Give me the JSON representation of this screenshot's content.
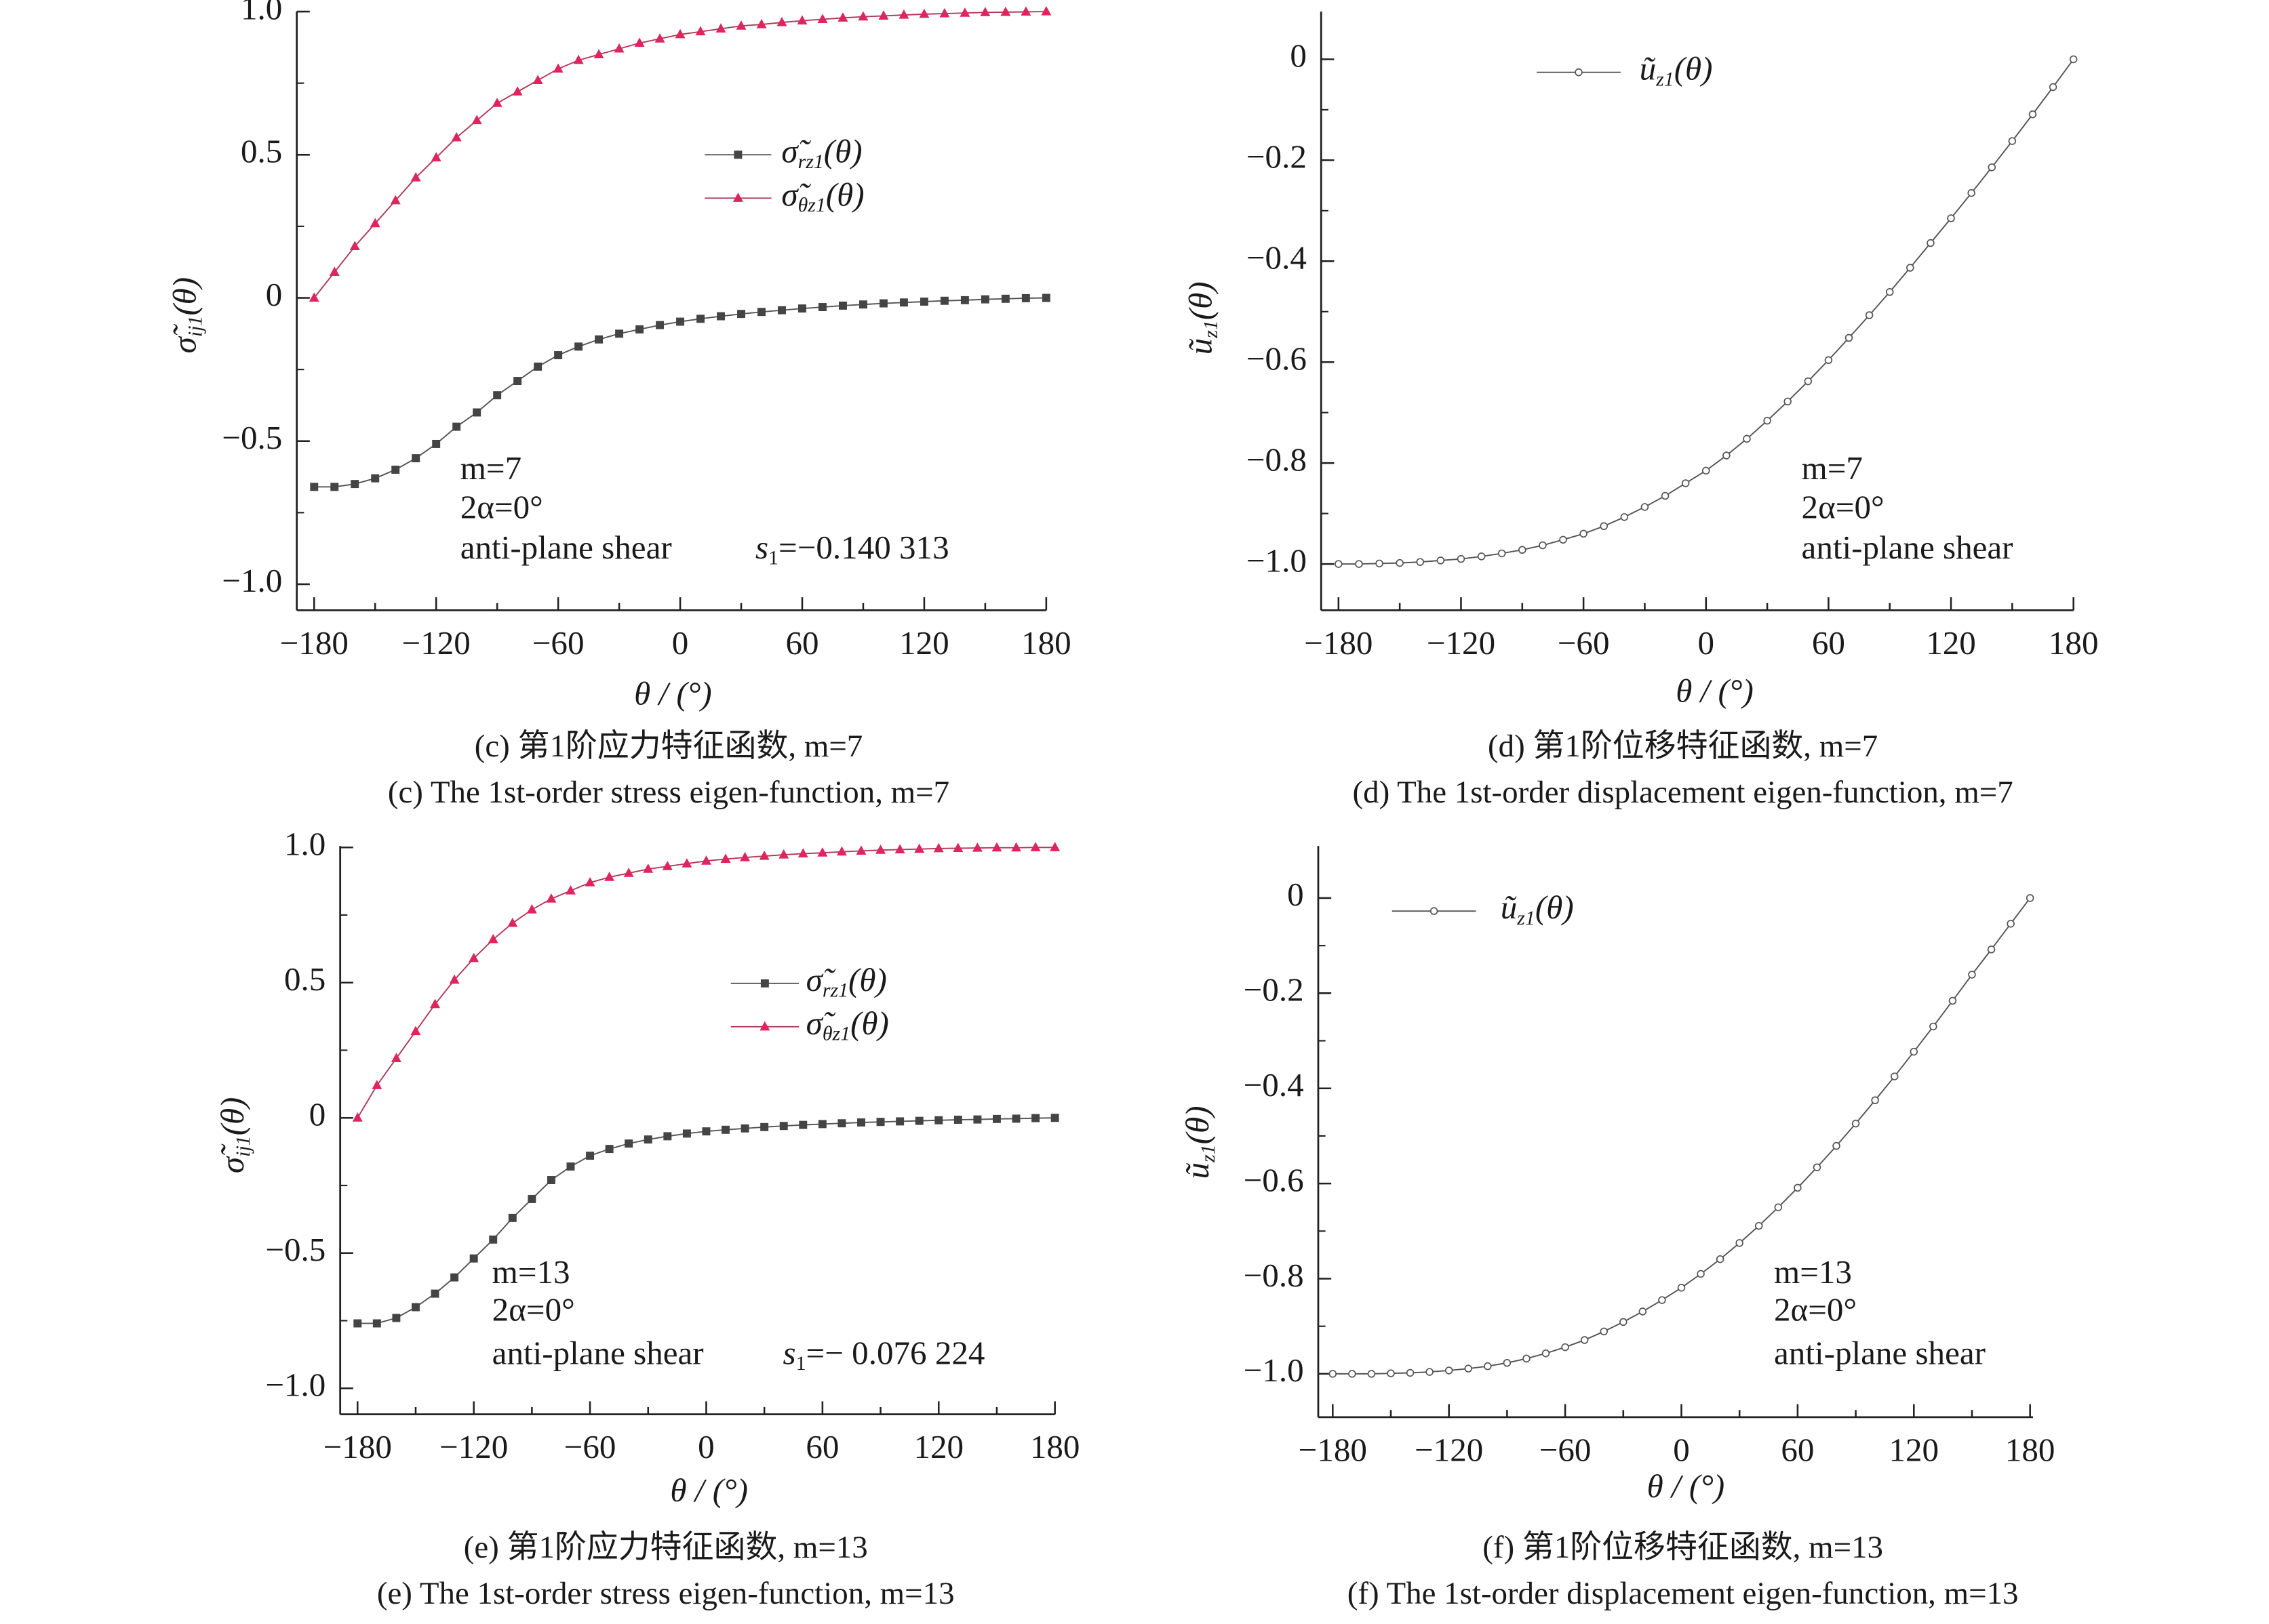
{
  "chart_data": [
    {
      "panel": "c",
      "type": "line",
      "x": [
        -180,
        -170,
        -160,
        -150,
        -140,
        -130,
        -120,
        -110,
        -100,
        -90,
        -80,
        -70,
        -60,
        -50,
        -40,
        -30,
        -20,
        -10,
        0,
        10,
        20,
        30,
        40,
        50,
        60,
        70,
        80,
        90,
        100,
        110,
        120,
        130,
        140,
        150,
        160,
        170,
        180
      ],
      "xlim": [
        -180,
        180
      ],
      "ylim": [
        -1.0,
        1.0
      ],
      "xticks": {
        "values": [
          -180,
          -120,
          -60,
          0,
          60,
          120,
          180
        ],
        "labels": [
          "−180",
          "−120",
          "−60",
          "0",
          "60",
          "120",
          "180"
        ]
      },
      "yticks": {
        "values": [
          1.0,
          0.5,
          0,
          -0.5,
          -1.0
        ],
        "labels": [
          "1.0",
          "0.5",
          "0",
          "−0.5",
          "−1.0"
        ]
      },
      "xlabel": "θ / (°)",
      "ylabel": {
        "base": "σ̃",
        "sub": "ij1",
        "tail": "(θ)"
      },
      "legend_position": "upper-center",
      "series": [
        {
          "name": {
            "base": "σ̃",
            "sub": "rz1",
            "tail": "(θ)"
          },
          "color": "#444444",
          "marker": "square",
          "values": [
            -0.66,
            -0.66,
            -0.65,
            -0.63,
            -0.6,
            -0.56,
            -0.51,
            -0.45,
            -0.4,
            -0.34,
            -0.29,
            -0.24,
            -0.2,
            -0.17,
            -0.145,
            -0.125,
            -0.11,
            -0.095,
            -0.083,
            -0.073,
            -0.064,
            -0.056,
            -0.049,
            -0.043,
            -0.037,
            -0.032,
            -0.027,
            -0.023,
            -0.019,
            -0.016,
            -0.013,
            -0.01,
            -0.008,
            -0.005,
            -0.003,
            -0.001,
            0
          ]
        },
        {
          "name": {
            "base": "σ̃",
            "sub": "θz1",
            "tail": "(θ)"
          },
          "color": "#e0245e",
          "marker": "triangle",
          "values": [
            0,
            0.09,
            0.18,
            0.26,
            0.34,
            0.42,
            0.49,
            0.56,
            0.62,
            0.68,
            0.72,
            0.76,
            0.8,
            0.83,
            0.85,
            0.87,
            0.89,
            0.905,
            0.92,
            0.93,
            0.94,
            0.95,
            0.955,
            0.962,
            0.968,
            0.973,
            0.978,
            0.982,
            0.985,
            0.988,
            0.991,
            0.993,
            0.995,
            0.997,
            0.998,
            0.999,
            1.0
          ]
        }
      ],
      "annotations": {
        "m": "m=7",
        "alpha": "2α=0°",
        "load": "anti-plane shear",
        "s_base": "s",
        "s_sub": "1",
        "s_val": "=−0.140 313"
      },
      "caption_cn": "(c) 第1阶应力特征函数, m=7",
      "caption_en": "(c) The 1st-order stress eigen-function, m=7"
    },
    {
      "panel": "d",
      "type": "line",
      "x": [
        -180,
        -170,
        -160,
        -150,
        -140,
        -130,
        -120,
        -110,
        -100,
        -90,
        -80,
        -70,
        -60,
        -50,
        -40,
        -30,
        -20,
        -10,
        0,
        10,
        20,
        30,
        40,
        50,
        60,
        70,
        80,
        90,
        100,
        110,
        120,
        130,
        140,
        150,
        160,
        170,
        180
      ],
      "xlim": [
        -180,
        180
      ],
      "ylim": [
        -1.0,
        0
      ],
      "xticks": {
        "values": [
          -180,
          -120,
          -60,
          0,
          60,
          120,
          180
        ],
        "labels": [
          "−180",
          "−120",
          "−60",
          "0",
          "60",
          "120",
          "180"
        ]
      },
      "yticks": {
        "values": [
          0,
          -0.2,
          -0.4,
          -0.6,
          -0.8,
          -1.0
        ],
        "labels": [
          "0",
          "−0.2",
          "−0.4",
          "−0.6",
          "−0.8",
          "−1.0"
        ]
      },
      "xlabel": "θ / (°)",
      "ylabel": {
        "base": "ũ",
        "sub": "z1",
        "tail": "(θ)"
      },
      "legend_position": "top-left",
      "series": [
        {
          "name": {
            "base": "ũ",
            "sub": "z1",
            "tail": "(θ)"
          },
          "color": "#555555",
          "marker": "circle",
          "values": [
            -1.0,
            -1.0,
            -0.999,
            -0.998,
            -0.996,
            -0.993,
            -0.99,
            -0.985,
            -0.979,
            -0.972,
            -0.963,
            -0.952,
            -0.94,
            -0.925,
            -0.907,
            -0.887,
            -0.865,
            -0.84,
            -0.815,
            -0.785,
            -0.752,
            -0.716,
            -0.678,
            -0.638,
            -0.596,
            -0.552,
            -0.507,
            -0.461,
            -0.413,
            -0.364,
            -0.315,
            -0.265,
            -0.214,
            -0.162,
            -0.109,
            -0.055,
            0
          ]
        }
      ],
      "annotations": {
        "m": "m=7",
        "alpha": "2α=0°",
        "load": "anti-plane shear"
      },
      "caption_cn": "(d) 第1阶位移特征函数, m=7",
      "caption_en": "(d) The 1st-order displacement eigen-function, m=7"
    },
    {
      "panel": "e",
      "type": "line",
      "x": [
        -180,
        -170,
        -160,
        -150,
        -140,
        -130,
        -120,
        -110,
        -100,
        -90,
        -80,
        -70,
        -60,
        -50,
        -40,
        -30,
        -20,
        -10,
        0,
        10,
        20,
        30,
        40,
        50,
        60,
        70,
        80,
        90,
        100,
        110,
        120,
        130,
        140,
        150,
        160,
        170,
        180
      ],
      "xlim": [
        -180,
        180
      ],
      "ylim": [
        -1.0,
        1.0
      ],
      "xticks": {
        "values": [
          -180,
          -120,
          -60,
          0,
          60,
          120,
          180
        ],
        "labels": [
          "−180",
          "−120",
          "−60",
          "0",
          "60",
          "120",
          "180"
        ]
      },
      "yticks": {
        "values": [
          1.0,
          0.5,
          0,
          -0.5,
          -1.0
        ],
        "labels": [
          "1.0",
          "0.5",
          "0",
          "−0.5",
          "−1.0"
        ]
      },
      "xlabel": "θ / (°)",
      "ylabel": {
        "base": "σ̃",
        "sub": "ij1",
        "tail": "(θ)"
      },
      "legend_position": "upper-center",
      "series": [
        {
          "name": {
            "base": "σ̃",
            "sub": "rz1",
            "tail": "(θ)"
          },
          "color": "#444444",
          "marker": "square",
          "values": [
            -0.76,
            -0.76,
            -0.74,
            -0.7,
            -0.65,
            -0.59,
            -0.52,
            -0.45,
            -0.37,
            -0.3,
            -0.23,
            -0.18,
            -0.14,
            -0.115,
            -0.095,
            -0.08,
            -0.068,
            -0.058,
            -0.05,
            -0.044,
            -0.039,
            -0.034,
            -0.03,
            -0.026,
            -0.023,
            -0.02,
            -0.017,
            -0.015,
            -0.013,
            -0.011,
            -0.009,
            -0.007,
            -0.006,
            -0.004,
            -0.003,
            -0.001,
            0
          ]
        },
        {
          "name": {
            "base": "σ̃",
            "sub": "θz1",
            "tail": "(θ)"
          },
          "color": "#e0245e",
          "marker": "triangle",
          "values": [
            0,
            0.12,
            0.22,
            0.32,
            0.42,
            0.51,
            0.59,
            0.66,
            0.72,
            0.77,
            0.81,
            0.84,
            0.87,
            0.89,
            0.905,
            0.92,
            0.93,
            0.94,
            0.95,
            0.957,
            0.963,
            0.968,
            0.973,
            0.977,
            0.98,
            0.984,
            0.987,
            0.99,
            0.992,
            0.994,
            0.996,
            0.997,
            0.998,
            0.999,
            0.999,
            1.0,
            1.0
          ]
        }
      ],
      "annotations": {
        "m": "m=13",
        "alpha": "2α=0°",
        "load": "anti-plane shear",
        "s_base": "s",
        "s_sub": "1",
        "s_val": "=− 0.076 224"
      },
      "caption_cn": "(e) 第1阶应力特征函数, m=13",
      "caption_en": "(e) The 1st-order stress eigen-function, m=13"
    },
    {
      "panel": "f",
      "type": "line",
      "x": [
        -180,
        -170,
        -160,
        -150,
        -140,
        -130,
        -120,
        -110,
        -100,
        -90,
        -80,
        -70,
        -60,
        -50,
        -40,
        -30,
        -20,
        -10,
        0,
        10,
        20,
        30,
        40,
        50,
        60,
        70,
        80,
        90,
        100,
        110,
        120,
        130,
        140,
        150,
        160,
        170,
        180
      ],
      "xlim": [
        -180,
        180
      ],
      "ylim": [
        -1.0,
        0
      ],
      "xticks": {
        "values": [
          -180,
          -120,
          -60,
          0,
          60,
          120,
          180
        ],
        "labels": [
          "−180",
          "−120",
          "−60",
          "0",
          "60",
          "120",
          "180"
        ]
      },
      "yticks": {
        "values": [
          0,
          -0.2,
          -0.4,
          -0.6,
          -0.8,
          -1.0
        ],
        "labels": [
          "0",
          "−0.2",
          "−0.4",
          "−0.6",
          "−0.8",
          "−1.0"
        ]
      },
      "xlabel": "θ / (°)",
      "ylabel": {
        "base": "ũ",
        "sub": "z1",
        "tail": "(θ)"
      },
      "legend_position": "top-left",
      "series": [
        {
          "name": {
            "base": "ũ",
            "sub": "z1",
            "tail": "(θ)"
          },
          "color": "#555555",
          "marker": "circle",
          "values": [
            -1.0,
            -1.0,
            -1.0,
            -0.999,
            -0.998,
            -0.996,
            -0.993,
            -0.989,
            -0.984,
            -0.977,
            -0.968,
            -0.957,
            -0.944,
            -0.929,
            -0.911,
            -0.891,
            -0.869,
            -0.845,
            -0.819,
            -0.79,
            -0.759,
            -0.725,
            -0.689,
            -0.65,
            -0.609,
            -0.566,
            -0.521,
            -0.474,
            -0.425,
            -0.375,
            -0.323,
            -0.27,
            -0.216,
            -0.161,
            -0.108,
            -0.054,
            0
          ]
        }
      ],
      "annotations": {
        "m": "m=13",
        "alpha": "2α=0°",
        "load": "anti-plane shear"
      },
      "caption_cn": "(f) 第1阶位移特征函数, m=13",
      "caption_en": "(f) The 1st-order displacement eigen-function, m=13"
    }
  ]
}
